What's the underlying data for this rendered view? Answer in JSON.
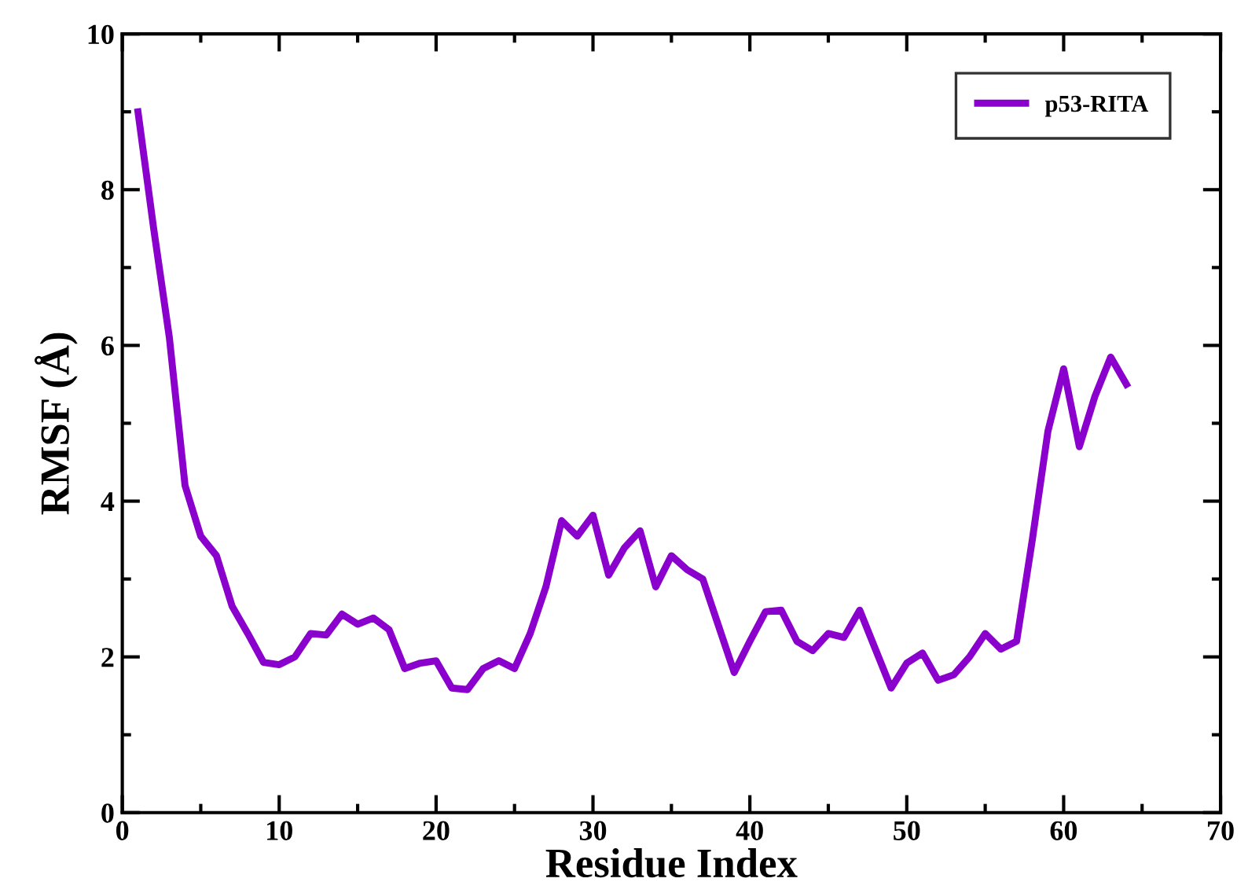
{
  "chart_data": {
    "type": "line",
    "xlabel": "Residue Index",
    "ylabel": "RMSF (Å)",
    "xlim": [
      0,
      70
    ],
    "xticks": [
      0,
      10,
      20,
      30,
      40,
      50,
      60,
      70
    ],
    "ylim": [
      0,
      10
    ],
    "yticks": [
      0,
      2,
      4,
      6,
      8,
      10
    ],
    "legend": "top right",
    "grid": false,
    "series": [
      {
        "name": "p53-RITA",
        "color": "#8a00cc",
        "x": [
          1,
          2,
          3,
          4,
          5,
          6,
          7,
          8,
          9,
          10,
          11,
          12,
          13,
          14,
          15,
          16,
          17,
          18,
          19,
          20,
          21,
          22,
          23,
          24,
          25,
          26,
          27,
          28,
          29,
          30,
          31,
          32,
          33,
          34,
          35,
          36,
          37,
          38,
          39,
          40,
          41,
          42,
          43,
          44,
          45,
          46,
          47,
          48,
          49,
          50,
          51,
          52,
          53,
          54,
          55,
          56,
          57,
          58,
          59,
          60,
          61,
          62,
          63,
          64
        ],
        "values": [
          9.0,
          7.5,
          6.1,
          4.2,
          3.55,
          3.3,
          2.65,
          2.3,
          1.93,
          1.9,
          2.0,
          2.3,
          2.28,
          2.55,
          2.42,
          2.5,
          2.35,
          1.85,
          1.92,
          1.95,
          1.6,
          1.58,
          1.85,
          1.95,
          1.85,
          2.3,
          2.9,
          3.75,
          3.55,
          3.82,
          3.05,
          3.4,
          3.62,
          2.9,
          3.3,
          3.12,
          3.0,
          2.4,
          1.8,
          2.2,
          2.58,
          2.6,
          2.2,
          2.08,
          2.3,
          2.25,
          2.6,
          2.1,
          1.6,
          1.92,
          2.05,
          1.7,
          1.77,
          2.0,
          2.3,
          2.1,
          2.2,
          3.5,
          4.9,
          5.7,
          4.7,
          5.35,
          5.85,
          5.5
        ]
      }
    ]
  }
}
